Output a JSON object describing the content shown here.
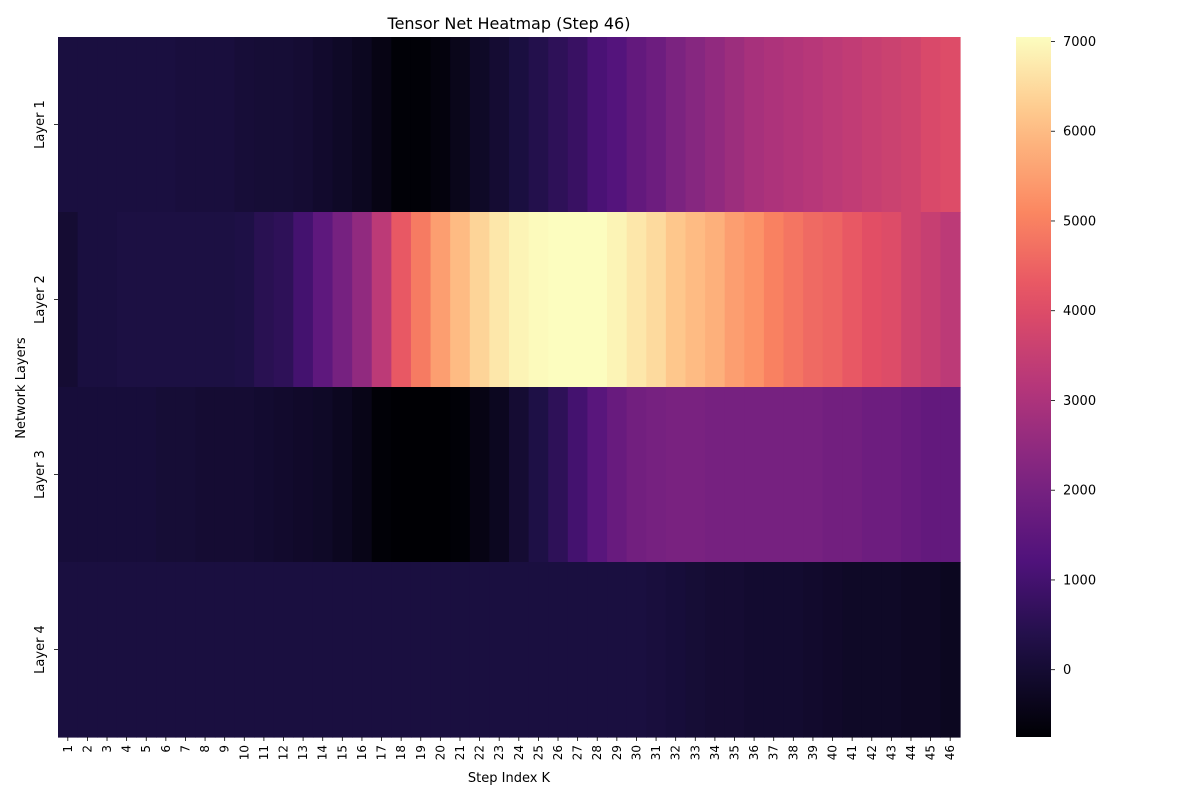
{
  "chart_data": {
    "type": "heatmap",
    "title": "Tensor Net Heatmap (Step 46)",
    "xlabel": "Step Index K",
    "ylabel": "Network Layers",
    "x": [
      "1",
      "2",
      "3",
      "4",
      "5",
      "6",
      "7",
      "8",
      "9",
      "10",
      "11",
      "12",
      "13",
      "14",
      "15",
      "16",
      "17",
      "18",
      "19",
      "20",
      "21",
      "22",
      "23",
      "24",
      "25",
      "26",
      "27",
      "28",
      "29",
      "30",
      "31",
      "32",
      "33",
      "34",
      "35",
      "36",
      "37",
      "38",
      "39",
      "40",
      "41",
      "42",
      "43",
      "44",
      "45",
      "46"
    ],
    "y": [
      "Layer 1",
      "Layer 2",
      "Layer 3",
      "Layer 4"
    ],
    "values": [
      [
        200,
        200,
        200,
        200,
        200,
        200,
        150,
        150,
        150,
        80,
        50,
        50,
        0,
        -100,
        -200,
        -300,
        -500,
        -700,
        -700,
        -600,
        -400,
        -200,
        0,
        200,
        400,
        600,
        800,
        1100,
        1300,
        1600,
        1800,
        2100,
        2300,
        2500,
        2700,
        2900,
        3000,
        3100,
        3200,
        3300,
        3400,
        3500,
        3600,
        3700,
        3900,
        4000
      ],
      [
        0,
        200,
        200,
        250,
        250,
        250,
        250,
        250,
        250,
        300,
        500,
        600,
        1000,
        1500,
        2000,
        2500,
        3300,
        4300,
        4900,
        5500,
        6000,
        6400,
        6700,
        6900,
        7000,
        7100,
        7100,
        7100,
        6900,
        6700,
        6500,
        6200,
        6000,
        5800,
        5500,
        5300,
        5000,
        4800,
        4600,
        4500,
        4300,
        4100,
        4000,
        3700,
        3500,
        3300
      ],
      [
        100,
        100,
        100,
        100,
        100,
        50,
        50,
        0,
        0,
        0,
        -50,
        -100,
        -150,
        -200,
        -300,
        -450,
        -700,
        -750,
        -750,
        -750,
        -700,
        -500,
        -300,
        0,
        300,
        600,
        1000,
        1400,
        1700,
        1900,
        2000,
        2050,
        2050,
        2000,
        2000,
        2000,
        2000,
        2000,
        2000,
        1900,
        1900,
        1800,
        1800,
        1700,
        1600,
        1600
      ],
      [
        200,
        200,
        200,
        200,
        200,
        200,
        200,
        200,
        200,
        200,
        200,
        200,
        200,
        200,
        200,
        200,
        200,
        200,
        200,
        200,
        200,
        200,
        200,
        200,
        200,
        200,
        200,
        200,
        200,
        200,
        150,
        100,
        50,
        0,
        0,
        -50,
        -50,
        -50,
        -100,
        -150,
        -200,
        -200,
        -200,
        -250,
        -250,
        -300
      ]
    ],
    "colorbar": {
      "min": -750,
      "max": 7050,
      "ticks": [
        "0",
        "1000",
        "2000",
        "3000",
        "4000",
        "5000",
        "6000",
        "7000"
      ],
      "tick_values": [
        0,
        1000,
        2000,
        3000,
        4000,
        5000,
        6000,
        7000
      ],
      "colormap": "magma"
    }
  }
}
